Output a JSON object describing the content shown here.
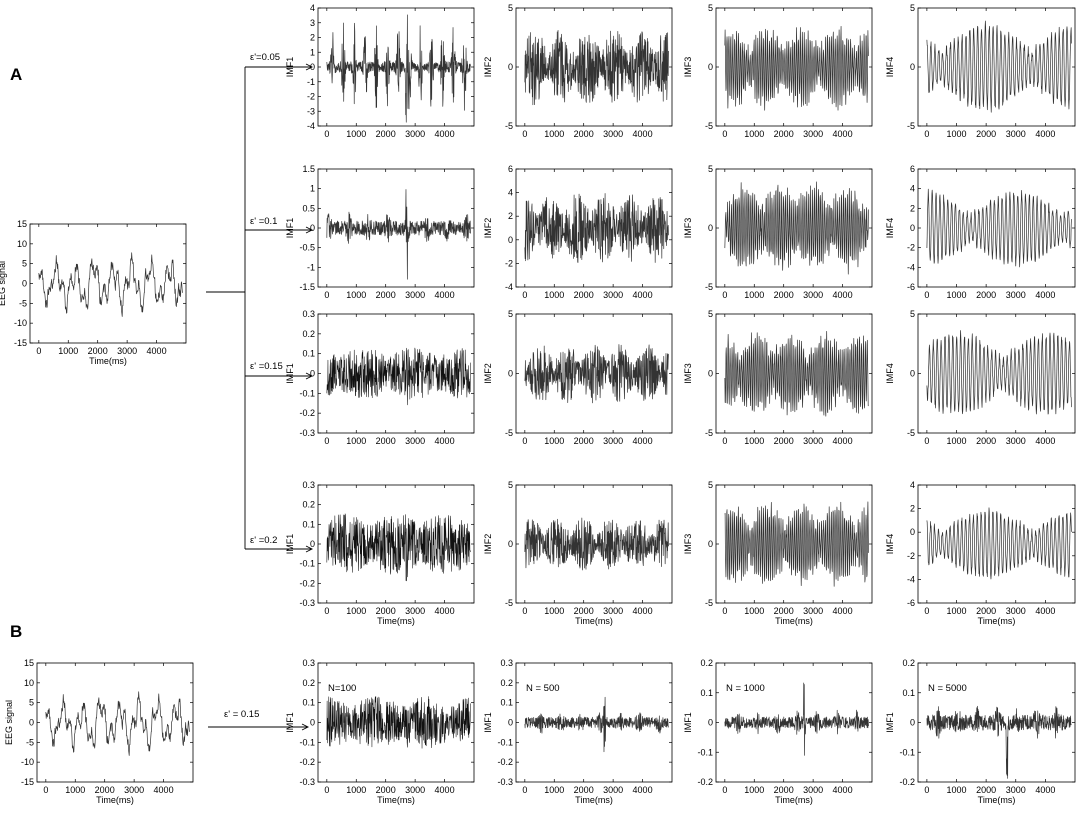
{
  "panel_letters": [
    "A",
    "B"
  ],
  "chart_data": [
    {
      "id": "A-eeg",
      "type": "line",
      "ylabel": "EEG signal",
      "xlabel": "Time(ms)",
      "ylim": [
        -15,
        15
      ],
      "yticks": [
        -15,
        -10,
        -5,
        0,
        5,
        10,
        15
      ],
      "xlim": [
        -300,
        5000
      ],
      "xticks": [
        0,
        1000,
        2000,
        3000,
        4000
      ],
      "signal": {
        "kind": "eeg",
        "amplitude": 0.45,
        "seed": 1
      },
      "series": [
        {
          "values": []
        }
      ]
    },
    {
      "id": "A-r1-imf1",
      "type": "line",
      "ylabel": "IMF1",
      "xlabel": "",
      "ylim": [
        -4,
        4
      ],
      "yticks": [
        -4,
        -3,
        -2,
        -1,
        0,
        1,
        2,
        3,
        4
      ],
      "xlim": [
        -300,
        5000
      ],
      "xticks": [
        0,
        1000,
        2000,
        3000,
        4000
      ],
      "signal": {
        "kind": "bursty",
        "amplitude": 0.75,
        "seed": 11
      },
      "series": [
        {
          "values": []
        }
      ]
    },
    {
      "id": "A-r1-imf2",
      "type": "line",
      "ylabel": "IMF2",
      "xlabel": "",
      "ylim": [
        -5,
        5
      ],
      "yticks": [
        -5,
        0,
        5
      ],
      "xlim": [
        -300,
        5000
      ],
      "xticks": [
        0,
        1000,
        2000,
        3000,
        4000
      ],
      "signal": {
        "kind": "noise",
        "amplitude": 0.65,
        "seed": 12
      },
      "series": [
        {
          "values": []
        }
      ]
    },
    {
      "id": "A-r1-imf3",
      "type": "line",
      "ylabel": "IMF3",
      "xlabel": "",
      "ylim": [
        -5,
        5
      ],
      "yticks": [
        -5,
        0,
        5
      ],
      "xlim": [
        -300,
        5000
      ],
      "xticks": [
        0,
        1000,
        2000,
        3000,
        4000
      ],
      "signal": {
        "kind": "osc",
        "amplitude": 0.6,
        "seed": 13
      },
      "series": [
        {
          "values": []
        }
      ]
    },
    {
      "id": "A-r1-imf4",
      "type": "line",
      "ylabel": "IMF4",
      "xlabel": "",
      "ylim": [
        -5,
        5
      ],
      "yticks": [
        -5,
        0,
        5
      ],
      "xlim": [
        -300,
        5000
      ],
      "xticks": [
        0,
        1000,
        2000,
        3000,
        4000
      ],
      "signal": {
        "kind": "slow",
        "amplitude": 0.7,
        "seed": 14
      },
      "series": [
        {
          "values": []
        }
      ]
    },
    {
      "id": "A-r2-imf1",
      "type": "line",
      "ylabel": "IMF1",
      "xlabel": "",
      "ylim": [
        -1.5,
        1.5
      ],
      "yticks": [
        -1.5,
        -1,
        -0.5,
        0,
        0.5,
        1,
        1.5
      ],
      "xlim": [
        -300,
        5000
      ],
      "xticks": [
        0,
        1000,
        2000,
        3000,
        4000
      ],
      "signal": {
        "kind": "spike",
        "amplitude": 0.75,
        "seed": 21
      },
      "series": [
        {
          "values": []
        }
      ]
    },
    {
      "id": "A-r2-imf2",
      "type": "line",
      "ylabel": "IMF2",
      "xlabel": "",
      "ylim": [
        -4,
        6
      ],
      "yticks": [
        -4,
        -2,
        0,
        2,
        4,
        6
      ],
      "xlim": [
        -300,
        5000
      ],
      "xticks": [
        0,
        1000,
        2000,
        3000,
        4000
      ],
      "signal": {
        "kind": "noise",
        "amplitude": 0.6,
        "seed": 22
      },
      "series": [
        {
          "values": []
        }
      ]
    },
    {
      "id": "A-r2-imf3",
      "type": "line",
      "ylabel": "IMF3",
      "xlabel": "",
      "ylim": [
        -5,
        5
      ],
      "yticks": [
        -5,
        0,
        5
      ],
      "xlim": [
        -300,
        5000
      ],
      "xticks": [
        0,
        1000,
        2000,
        3000,
        4000
      ],
      "signal": {
        "kind": "osc",
        "amplitude": 0.65,
        "seed": 23
      },
      "series": [
        {
          "values": []
        }
      ]
    },
    {
      "id": "A-r2-imf4",
      "type": "line",
      "ylabel": "IMF4",
      "xlabel": "",
      "ylim": [
        -6,
        6
      ],
      "yticks": [
        -6,
        -4,
        -2,
        0,
        2,
        4,
        6
      ],
      "xlim": [
        -300,
        5000
      ],
      "xticks": [
        0,
        1000,
        2000,
        3000,
        4000
      ],
      "signal": {
        "kind": "slow",
        "amplitude": 0.6,
        "seed": 24
      },
      "series": [
        {
          "values": []
        }
      ]
    },
    {
      "id": "A-r3-imf1",
      "type": "line",
      "ylabel": "IMF1",
      "xlabel": "",
      "ylim": [
        -0.3,
        0.3
      ],
      "yticks": [
        -0.3,
        -0.2,
        -0.1,
        0,
        0.1,
        0.2,
        0.3
      ],
      "xlim": [
        -300,
        5000
      ],
      "xticks": [
        0,
        1000,
        2000,
        3000,
        4000
      ],
      "signal": {
        "kind": "dense",
        "amplitude": 0.55,
        "seed": 31
      },
      "series": [
        {
          "values": []
        }
      ]
    },
    {
      "id": "A-r3-imf2",
      "type": "line",
      "ylabel": "IMF2",
      "xlabel": "",
      "ylim": [
        -5,
        5
      ],
      "yticks": [
        -5,
        0,
        5
      ],
      "xlim": [
        -300,
        5000
      ],
      "xticks": [
        0,
        1000,
        2000,
        3000,
        4000
      ],
      "signal": {
        "kind": "noise",
        "amplitude": 0.5,
        "seed": 32
      },
      "series": [
        {
          "values": []
        }
      ]
    },
    {
      "id": "A-r3-imf3",
      "type": "line",
      "ylabel": "IMF3",
      "xlabel": "",
      "ylim": [
        -5,
        5
      ],
      "yticks": [
        -5,
        0,
        5
      ],
      "xlim": [
        -300,
        5000
      ],
      "xticks": [
        0,
        1000,
        2000,
        3000,
        4000
      ],
      "signal": {
        "kind": "osc",
        "amplitude": 0.6,
        "seed": 33
      },
      "series": [
        {
          "values": []
        }
      ]
    },
    {
      "id": "A-r3-imf4",
      "type": "line",
      "ylabel": "IMF4",
      "xlabel": "",
      "ylim": [
        -5,
        5
      ],
      "yticks": [
        -5,
        0,
        5
      ],
      "xlim": [
        -300,
        5000
      ],
      "xticks": [
        0,
        1000,
        2000,
        3000,
        4000
      ],
      "signal": {
        "kind": "slow",
        "amplitude": 0.65,
        "seed": 34
      },
      "series": [
        {
          "values": []
        }
      ]
    },
    {
      "id": "A-r4-imf1",
      "type": "line",
      "ylabel": "IMF1",
      "xlabel": "Time(ms)",
      "ylim": [
        -0.3,
        0.3
      ],
      "yticks": [
        -0.3,
        -0.2,
        -0.1,
        0,
        0.1,
        0.2,
        0.3
      ],
      "xlim": [
        -300,
        5000
      ],
      "xticks": [
        0,
        1000,
        2000,
        3000,
        4000
      ],
      "signal": {
        "kind": "dense",
        "amplitude": 0.65,
        "seed": 41
      },
      "series": [
        {
          "values": []
        }
      ]
    },
    {
      "id": "A-r4-imf2",
      "type": "line",
      "ylabel": "IMF2",
      "xlabel": "Time(ms)",
      "ylim": [
        -5,
        5
      ],
      "yticks": [
        -5,
        0,
        5
      ],
      "xlim": [
        -300,
        5000
      ],
      "xticks": [
        0,
        1000,
        2000,
        3000,
        4000
      ],
      "signal": {
        "kind": "noise",
        "amplitude": 0.45,
        "seed": 42
      },
      "series": [
        {
          "values": []
        }
      ]
    },
    {
      "id": "A-r4-imf3",
      "type": "line",
      "ylabel": "IMF3",
      "xlabel": "Time(ms)",
      "ylim": [
        -5,
        5
      ],
      "yticks": [
        -5,
        0,
        5
      ],
      "xlim": [
        -300,
        5000
      ],
      "xticks": [
        0,
        1000,
        2000,
        3000,
        4000
      ],
      "signal": {
        "kind": "osc",
        "amplitude": 0.6,
        "seed": 43
      },
      "series": [
        {
          "values": []
        }
      ]
    },
    {
      "id": "A-r4-imf4",
      "type": "line",
      "ylabel": "IMF4",
      "xlabel": "Time(ms)",
      "ylim": [
        -6,
        4
      ],
      "yticks": [
        -6,
        -4,
        -2,
        0,
        2,
        4
      ],
      "xlim": [
        -300,
        5000
      ],
      "xticks": [
        0,
        1000,
        2000,
        3000,
        4000
      ],
      "signal": {
        "kind": "slow",
        "amplitude": 0.55,
        "seed": 44
      },
      "series": [
        {
          "values": []
        }
      ]
    },
    {
      "id": "B-eeg",
      "type": "line",
      "ylabel": "EEG signal",
      "xlabel": "Time(ms)",
      "ylim": [
        -15,
        15
      ],
      "yticks": [
        -15,
        -10,
        -5,
        0,
        5,
        10,
        15
      ],
      "xlim": [
        -300,
        5000
      ],
      "xticks": [
        0,
        1000,
        2000,
        3000,
        4000
      ],
      "signal": {
        "kind": "eeg",
        "amplitude": 0.45,
        "seed": 1
      },
      "series": [
        {
          "values": []
        }
      ]
    },
    {
      "id": "B-n100",
      "type": "line",
      "ylabel": "IMF1",
      "xlabel": "Time(ms)",
      "annotation": "N=100",
      "ylim": [
        -0.3,
        0.3
      ],
      "yticks": [
        -0.3,
        -0.2,
        -0.1,
        0,
        0.1,
        0.2,
        0.3
      ],
      "xlim": [
        -300,
        5000
      ],
      "xticks": [
        0,
        1000,
        2000,
        3000,
        4000
      ],
      "signal": {
        "kind": "dense",
        "amplitude": 0.55,
        "seed": 51
      },
      "series": [
        {
          "values": []
        }
      ]
    },
    {
      "id": "B-n500",
      "type": "line",
      "ylabel": "IMF1",
      "xlabel": "Time(ms)",
      "annotation": "N = 500",
      "ylim": [
        -0.3,
        0.3
      ],
      "yticks": [
        -0.3,
        -0.2,
        -0.1,
        0,
        0.1,
        0.2,
        0.3
      ],
      "xlim": [
        -300,
        5000
      ],
      "xticks": [
        0,
        1000,
        2000,
        3000,
        4000
      ],
      "signal": {
        "kind": "spike",
        "amplitude": 0.55,
        "seed": 52
      },
      "series": [
        {
          "values": []
        }
      ]
    },
    {
      "id": "B-n1000",
      "type": "line",
      "ylabel": "IMF1",
      "xlabel": "Time(ms)",
      "annotation": "N = 1000",
      "ylim": [
        -0.2,
        0.2
      ],
      "yticks": [
        -0.2,
        -0.1,
        0,
        0.1,
        0.2
      ],
      "xlim": [
        -300,
        5000
      ],
      "xticks": [
        0,
        1000,
        2000,
        3000,
        4000
      ],
      "signal": {
        "kind": "spike",
        "amplitude": 0.6,
        "seed": 53
      },
      "series": [
        {
          "values": []
        }
      ]
    },
    {
      "id": "B-n5000",
      "type": "line",
      "ylabel": "IMF1",
      "xlabel": "Time(ms)",
      "annotation": "N = 5000",
      "ylim": [
        -0.2,
        0.2
      ],
      "yticks": [
        -0.2,
        -0.1,
        0,
        0.1,
        0.2
      ],
      "xlim": [
        -300,
        5000
      ],
      "xticks": [
        0,
        1000,
        2000,
        3000,
        4000
      ],
      "signal": {
        "kind": "spike",
        "amplitude": 0.8,
        "seed": 54
      },
      "series": [
        {
          "values": []
        }
      ]
    }
  ],
  "epsilon_labels": [
    "ε'=0.05",
    "ε' =0.1",
    "ε' =0.15",
    "ε' =0.2",
    "ε' = 0.15"
  ]
}
